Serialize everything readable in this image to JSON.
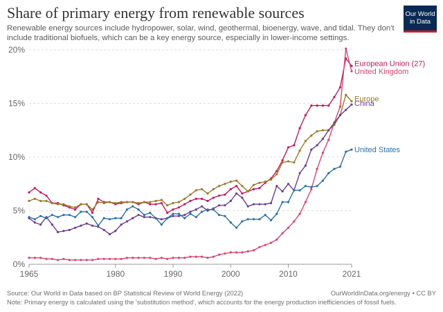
{
  "title": "Share of primary energy from renewable sources",
  "subtitle": "Renewable energy sources include hydropower, solar, wind, geothermal, bioenergy, wave, and tidal. They don't include traditional biofuels, which can be a key energy source, especially in lower-income settings.",
  "logo": {
    "line1": "Our World",
    "line2": "in Data",
    "bg_color": "#0b2a53",
    "accent_color": "#c02026"
  },
  "footer": {
    "source": "Source: Our World in Data based on BP Statistical Review of World Energy (2022)",
    "url_license": "OurWorldInData.org/energy • CC BY",
    "note": "Note: Primary energy is calculated using the 'substitution method', which accounts for the energy production inefficiencies of fossil fuels."
  },
  "chart_data": {
    "type": "line",
    "title": "Share of primary energy from renewable sources",
    "xlabel": "",
    "ylabel": "",
    "xlim": [
      1965,
      2021
    ],
    "ylim": [
      0,
      20
    ],
    "y_unit": "%",
    "x_ticks": [
      1965,
      1980,
      1990,
      2000,
      2010,
      2021
    ],
    "y_ticks": [
      0,
      5,
      10,
      15,
      20
    ],
    "grid": "horizontal dashed",
    "legend": "labels at right end of lines",
    "series": [
      {
        "name": "European Union (27)",
        "color": "#c2185b",
        "values": [
          [
            1965,
            6.7
          ],
          [
            1966,
            7.1
          ],
          [
            1967,
            6.7
          ],
          [
            1968,
            6.4
          ],
          [
            1969,
            5.7
          ],
          [
            1970,
            5.7
          ],
          [
            1971,
            5.5
          ],
          [
            1972,
            5.3
          ],
          [
            1973,
            5.1
          ],
          [
            1974,
            5.6
          ],
          [
            1975,
            5.6
          ],
          [
            1976,
            4.8
          ],
          [
            1977,
            6.1
          ],
          [
            1978,
            5.8
          ],
          [
            1979,
            5.8
          ],
          [
            1980,
            5.6
          ],
          [
            1981,
            5.7
          ],
          [
            1982,
            5.8
          ],
          [
            1983,
            5.8
          ],
          [
            1984,
            5.6
          ],
          [
            1985,
            5.8
          ],
          [
            1986,
            5.6
          ],
          [
            1987,
            5.6
          ],
          [
            1988,
            5.7
          ],
          [
            1989,
            4.8
          ],
          [
            1990,
            5.1
          ],
          [
            1991,
            5.3
          ],
          [
            1992,
            5.6
          ],
          [
            1993,
            5.9
          ],
          [
            1994,
            6.1
          ],
          [
            1995,
            6.1
          ],
          [
            1996,
            5.9
          ],
          [
            1997,
            6.2
          ],
          [
            1998,
            6.4
          ],
          [
            1999,
            6.5
          ],
          [
            2000,
            7.0
          ],
          [
            2001,
            7.3
          ],
          [
            2002,
            6.6
          ],
          [
            2003,
            6.8
          ],
          [
            2004,
            7.0
          ],
          [
            2005,
            7.1
          ],
          [
            2006,
            7.6
          ],
          [
            2007,
            8.0
          ],
          [
            2008,
            8.7
          ],
          [
            2009,
            9.7
          ],
          [
            2010,
            10.9
          ],
          [
            2011,
            11.1
          ],
          [
            2012,
            12.7
          ],
          [
            2013,
            13.9
          ],
          [
            2014,
            14.8
          ],
          [
            2015,
            14.8
          ],
          [
            2016,
            14.8
          ],
          [
            2017,
            14.8
          ],
          [
            2018,
            15.6
          ],
          [
            2019,
            16.5
          ],
          [
            2020,
            19.2
          ],
          [
            2021,
            18.5
          ]
        ]
      },
      {
        "name": "United Kingdom",
        "color": "#d6456e",
        "values": [
          [
            1965,
            0.6
          ],
          [
            1966,
            0.6
          ],
          [
            1967,
            0.6
          ],
          [
            1968,
            0.5
          ],
          [
            1969,
            0.5
          ],
          [
            1970,
            0.4
          ],
          [
            1971,
            0.5
          ],
          [
            1972,
            0.4
          ],
          [
            1973,
            0.4
          ],
          [
            1974,
            0.4
          ],
          [
            1975,
            0.4
          ],
          [
            1976,
            0.4
          ],
          [
            1977,
            0.5
          ],
          [
            1978,
            0.5
          ],
          [
            1979,
            0.5
          ],
          [
            1980,
            0.5
          ],
          [
            1981,
            0.5
          ],
          [
            1982,
            0.6
          ],
          [
            1983,
            0.6
          ],
          [
            1984,
            0.6
          ],
          [
            1985,
            0.6
          ],
          [
            1986,
            0.6
          ],
          [
            1987,
            0.5
          ],
          [
            1988,
            0.6
          ],
          [
            1989,
            0.5
          ],
          [
            1990,
            0.6
          ],
          [
            1991,
            0.6
          ],
          [
            1992,
            0.6
          ],
          [
            1993,
            0.7
          ],
          [
            1994,
            0.7
          ],
          [
            1995,
            0.7
          ],
          [
            1996,
            0.6
          ],
          [
            1997,
            0.7
          ],
          [
            1998,
            0.9
          ],
          [
            1999,
            1.0
          ],
          [
            2000,
            1.1
          ],
          [
            2001,
            1.1
          ],
          [
            2002,
            1.1
          ],
          [
            2003,
            1.2
          ],
          [
            2004,
            1.3
          ],
          [
            2005,
            1.6
          ],
          [
            2006,
            1.8
          ],
          [
            2007,
            2.0
          ],
          [
            2008,
            2.3
          ],
          [
            2009,
            2.9
          ],
          [
            2010,
            3.4
          ],
          [
            2011,
            4.0
          ],
          [
            2012,
            4.7
          ],
          [
            2013,
            5.8
          ],
          [
            2014,
            7.0
          ],
          [
            2015,
            8.9
          ],
          [
            2016,
            10.4
          ],
          [
            2017,
            11.6
          ],
          [
            2018,
            13.2
          ],
          [
            2019,
            14.7
          ],
          [
            2020,
            20.1
          ],
          [
            2021,
            18.0
          ]
        ]
      },
      {
        "name": "Europe",
        "color": "#9a7a28",
        "values": [
          [
            1965,
            5.9
          ],
          [
            1966,
            6.1
          ],
          [
            1967,
            5.9
          ],
          [
            1968,
            5.9
          ],
          [
            1969,
            5.7
          ],
          [
            1970,
            5.6
          ],
          [
            1971,
            5.6
          ],
          [
            1972,
            5.4
          ],
          [
            1973,
            5.3
          ],
          [
            1974,
            5.6
          ],
          [
            1975,
            5.6
          ],
          [
            1976,
            5.1
          ],
          [
            1977,
            5.8
          ],
          [
            1978,
            5.7
          ],
          [
            1979,
            5.8
          ],
          [
            1980,
            5.7
          ],
          [
            1981,
            5.8
          ],
          [
            1982,
            5.8
          ],
          [
            1983,
            5.8
          ],
          [
            1984,
            5.7
          ],
          [
            1985,
            5.8
          ],
          [
            1986,
            5.8
          ],
          [
            1987,
            5.9
          ],
          [
            1988,
            6.0
          ],
          [
            1989,
            5.5
          ],
          [
            1990,
            5.7
          ],
          [
            1991,
            5.8
          ],
          [
            1992,
            6.1
          ],
          [
            1993,
            6.5
          ],
          [
            1994,
            6.9
          ],
          [
            1995,
            7.0
          ],
          [
            1996,
            6.6
          ],
          [
            1997,
            7.0
          ],
          [
            1998,
            7.3
          ],
          [
            1999,
            7.5
          ],
          [
            2000,
            7.7
          ],
          [
            2001,
            7.8
          ],
          [
            2002,
            7.3
          ],
          [
            2003,
            6.8
          ],
          [
            2004,
            7.4
          ],
          [
            2005,
            7.6
          ],
          [
            2006,
            7.7
          ],
          [
            2007,
            7.9
          ],
          [
            2008,
            8.4
          ],
          [
            2009,
            9.5
          ],
          [
            2010,
            9.6
          ],
          [
            2011,
            9.5
          ],
          [
            2012,
            10.6
          ],
          [
            2013,
            11.5
          ],
          [
            2014,
            12.0
          ],
          [
            2015,
            12.4
          ],
          [
            2016,
            12.5
          ],
          [
            2017,
            12.5
          ],
          [
            2018,
            13.0
          ],
          [
            2019,
            13.9
          ],
          [
            2020,
            15.8
          ],
          [
            2021,
            15.2
          ]
        ]
      },
      {
        "name": "China",
        "color": "#6b3d8e",
        "values": [
          [
            1965,
            4.3
          ],
          [
            1966,
            3.9
          ],
          [
            1967,
            3.7
          ],
          [
            1968,
            4.4
          ],
          [
            1969,
            3.7
          ],
          [
            1970,
            3.0
          ],
          [
            1971,
            3.1
          ],
          [
            1972,
            3.2
          ],
          [
            1973,
            3.4
          ],
          [
            1974,
            3.6
          ],
          [
            1975,
            3.8
          ],
          [
            1976,
            3.6
          ],
          [
            1977,
            3.5
          ],
          [
            1978,
            3.2
          ],
          [
            1979,
            2.8
          ],
          [
            1980,
            3.1
          ],
          [
            1981,
            3.7
          ],
          [
            1982,
            4.0
          ],
          [
            1983,
            4.3
          ],
          [
            1984,
            4.6
          ],
          [
            1985,
            4.4
          ],
          [
            1986,
            4.4
          ],
          [
            1987,
            4.3
          ],
          [
            1988,
            4.2
          ],
          [
            1989,
            4.3
          ],
          [
            1990,
            4.5
          ],
          [
            1991,
            4.5
          ],
          [
            1992,
            4.6
          ],
          [
            1993,
            4.9
          ],
          [
            1994,
            5.1
          ],
          [
            1995,
            5.4
          ],
          [
            1996,
            5.0
          ],
          [
            1997,
            5.2
          ],
          [
            1998,
            5.5
          ],
          [
            1999,
            5.5
          ],
          [
            2000,
            5.9
          ],
          [
            2001,
            6.6
          ],
          [
            2002,
            6.2
          ],
          [
            2003,
            5.4
          ],
          [
            2004,
            5.6
          ],
          [
            2005,
            5.6
          ],
          [
            2006,
            5.6
          ],
          [
            2007,
            5.7
          ],
          [
            2008,
            7.3
          ],
          [
            2009,
            6.8
          ],
          [
            2010,
            7.5
          ],
          [
            2011,
            6.9
          ],
          [
            2012,
            8.5
          ],
          [
            2013,
            9.2
          ],
          [
            2014,
            10.7
          ],
          [
            2015,
            11.1
          ],
          [
            2016,
            11.7
          ],
          [
            2017,
            12.5
          ],
          [
            2018,
            13.2
          ],
          [
            2019,
            13.9
          ],
          [
            2020,
            14.4
          ],
          [
            2021,
            14.9
          ]
        ]
      },
      {
        "name": "United States",
        "color": "#2c6fa7",
        "values": [
          [
            1965,
            4.4
          ],
          [
            1966,
            4.2
          ],
          [
            1967,
            4.5
          ],
          [
            1968,
            4.3
          ],
          [
            1969,
            4.6
          ],
          [
            1970,
            4.4
          ],
          [
            1971,
            4.6
          ],
          [
            1972,
            4.6
          ],
          [
            1973,
            4.4
          ],
          [
            1974,
            4.9
          ],
          [
            1975,
            4.9
          ],
          [
            1976,
            4.4
          ],
          [
            1977,
            3.6
          ],
          [
            1978,
            4.3
          ],
          [
            1979,
            4.2
          ],
          [
            1980,
            4.3
          ],
          [
            1981,
            4.3
          ],
          [
            1982,
            5.1
          ],
          [
            1983,
            5.4
          ],
          [
            1984,
            5.1
          ],
          [
            1985,
            4.6
          ],
          [
            1986,
            4.8
          ],
          [
            1987,
            4.3
          ],
          [
            1988,
            3.7
          ],
          [
            1989,
            4.3
          ],
          [
            1990,
            4.7
          ],
          [
            1991,
            4.7
          ],
          [
            1992,
            4.3
          ],
          [
            1993,
            4.7
          ],
          [
            1994,
            4.4
          ],
          [
            1995,
            4.9
          ],
          [
            1996,
            5.1
          ],
          [
            1997,
            5.1
          ],
          [
            1998,
            4.6
          ],
          [
            1999,
            4.5
          ],
          [
            2000,
            3.9
          ],
          [
            2001,
            3.4
          ],
          [
            2002,
            4.0
          ],
          [
            2003,
            4.2
          ],
          [
            2004,
            4.2
          ],
          [
            2005,
            4.2
          ],
          [
            2006,
            4.6
          ],
          [
            2007,
            4.1
          ],
          [
            2008,
            4.7
          ],
          [
            2009,
            5.8
          ],
          [
            2010,
            5.8
          ],
          [
            2011,
            6.9
          ],
          [
            2012,
            6.9
          ],
          [
            2013,
            7.3
          ],
          [
            2014,
            7.2
          ],
          [
            2015,
            7.3
          ],
          [
            2016,
            7.8
          ],
          [
            2017,
            8.5
          ],
          [
            2018,
            8.9
          ],
          [
            2019,
            9.1
          ],
          [
            2020,
            10.5
          ],
          [
            2021,
            10.7
          ]
        ]
      }
    ]
  }
}
